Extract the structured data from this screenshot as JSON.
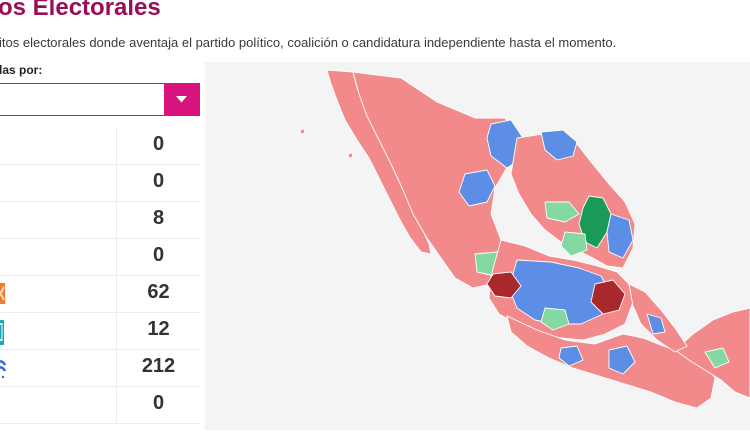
{
  "header": {
    "title": "os Electorales",
    "subtitle": "itos electorales donde aventaja el partido político, coalición o candidatura independiente hasta el momento.",
    "filter_label": "las por:"
  },
  "filter": {
    "selected_value": "",
    "toggle_icon": "caret-down-icon"
  },
  "results": {
    "rows": [
      {
        "value": "0"
      },
      {
        "value": "0"
      },
      {
        "value": "8"
      },
      {
        "value": "0"
      },
      {
        "value": "62",
        "icon": "party-logo-orange-icon"
      },
      {
        "value": "12",
        "icon": "party-logo-teal-icon"
      },
      {
        "value": "212",
        "icon": "party-logo-blue-icon"
      },
      {
        "value": "0"
      }
    ]
  },
  "map": {
    "region": "Mexico",
    "colors": {
      "background": "#f4f4f4",
      "majority": "#f2898a",
      "blue": "#5b8ee4",
      "light_green": "#84d9a2",
      "dark_green": "#199a56",
      "dark_red": "#a9282c",
      "border": "#ffffff"
    }
  },
  "theme": {
    "title_color": "#9b0e57",
    "accent": "#d8137d"
  }
}
